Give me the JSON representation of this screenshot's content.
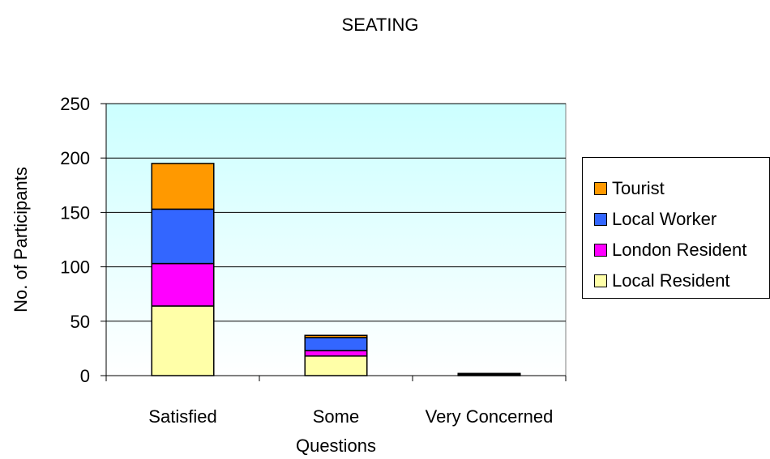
{
  "chart_data": {
    "type": "bar",
    "stacked": true,
    "title": "SEATING",
    "xlabel": "",
    "ylabel": "No. of Participants",
    "categories": [
      "Satisfied",
      "Some Questions",
      "Very Concerned"
    ],
    "category_label_lines": [
      [
        "Satisfied"
      ],
      [
        "Some",
        "Questions"
      ],
      [
        "Very Concerned"
      ]
    ],
    "ylim": [
      0,
      250
    ],
    "yticks": [
      0,
      50,
      100,
      150,
      200,
      250
    ],
    "grid": true,
    "legend_position": "right",
    "series": [
      {
        "name": "Local Resident",
        "color": "#FFFFA8",
        "values": [
          64,
          18,
          1
        ]
      },
      {
        "name": "London Resident",
        "color": "#FF00FF",
        "values": [
          39,
          5,
          0
        ]
      },
      {
        "name": "Local Worker",
        "color": "#3366FF",
        "values": [
          50,
          12,
          0
        ]
      },
      {
        "name": "Tourist",
        "color": "#FF9900",
        "values": [
          42,
          2,
          1
        ]
      }
    ],
    "legend_order": [
      "Tourist",
      "Local Worker",
      "London Resident",
      "Local Resident"
    ],
    "plot_background_top": "#CCFFFF",
    "plot_background_bottom": "#FFFFFF"
  }
}
